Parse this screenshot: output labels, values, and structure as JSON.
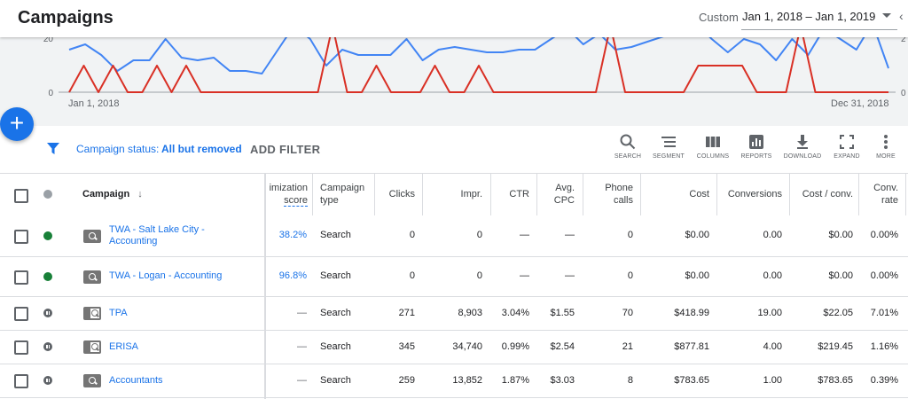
{
  "header": {
    "title": "Campaigns",
    "range_label": "Custom",
    "range_value": "Jan 1, 2018 – Jan 1, 2019"
  },
  "colors": {
    "accent": "#1a73e8",
    "blue_series": "#4285f4",
    "red_series": "#d93025",
    "active": "#188038"
  },
  "chart_data": {
    "type": "line",
    "x_start_label": "Jan 1, 2018",
    "x_end_label": "Dec 31, 2018",
    "y_ticks_left": [
      "20",
      "0"
    ],
    "y_ticks_right": [
      "2",
      "0"
    ],
    "series": [
      {
        "color": "#4285f4",
        "values": [
          16,
          18,
          14,
          8,
          12,
          12,
          20,
          13,
          12,
          13,
          8,
          8,
          7,
          16,
          25,
          20,
          10,
          16,
          14,
          14,
          14,
          20,
          12,
          16,
          17,
          16,
          15,
          15,
          16,
          16,
          20,
          24,
          18,
          22,
          16,
          17,
          19,
          21,
          22,
          26,
          20,
          15,
          20,
          18,
          12,
          20,
          14,
          24,
          20,
          16,
          26,
          9
        ]
      },
      {
        "color": "#d93025",
        "values": [
          0,
          10,
          0,
          10,
          0,
          0,
          10,
          0,
          10,
          0,
          0,
          0,
          0,
          0,
          0,
          0,
          0,
          0,
          25,
          0,
          0,
          10,
          0,
          0,
          0,
          10,
          0,
          0,
          10,
          0,
          0,
          0,
          0,
          0,
          0,
          0,
          0,
          25,
          0,
          0,
          0,
          0,
          0,
          10,
          10,
          10,
          10,
          0,
          0,
          0,
          25,
          0,
          0,
          0,
          0,
          0,
          0
        ]
      }
    ]
  },
  "fab": {
    "symbol": "+"
  },
  "filter": {
    "key": "Campaign status:",
    "value": "All but removed",
    "add_label": "ADD FILTER"
  },
  "toolbar": {
    "search": "SEARCH",
    "segment": "SEGMENT",
    "columns": "COLUMNS",
    "reports": "REPORTS",
    "download": "DOWNLOAD",
    "expand": "EXPAND",
    "more": "MORE"
  },
  "table": {
    "headers": {
      "campaign": "Campaign",
      "sort_arrow": "↓",
      "opt_score_1": "imization",
      "opt_score_2": "score",
      "type_1": "Campaign",
      "type_2": "type",
      "clicks": "Clicks",
      "impr": "Impr.",
      "ctr": "CTR",
      "cpc_1": "Avg.",
      "cpc_2": "CPC",
      "calls_1": "Phone",
      "calls_2": "calls",
      "cost": "Cost",
      "conversions": "Conversions",
      "cost_conv": "Cost / conv.",
      "conv_rate_1": "Conv.",
      "conv_rate_2": "rate"
    },
    "rows": [
      {
        "name_1": "TWA - Salt Lake City -",
        "name_2": "Accounting",
        "opt": "38.2%",
        "type": "Search",
        "clicks": "0",
        "impr": "0",
        "ctr": "—",
        "cpc": "—",
        "calls": "0",
        "cost": "$0.00",
        "conv": "0.00",
        "cost_conv": "$0.00",
        "rate": "0.00%"
      },
      {
        "name_1": "TWA - Logan - Accounting",
        "name_2": "",
        "opt": "96.8%",
        "type": "Search",
        "clicks": "0",
        "impr": "0",
        "ctr": "—",
        "cpc": "—",
        "calls": "0",
        "cost": "$0.00",
        "conv": "0.00",
        "cost_conv": "$0.00",
        "rate": "0.00%"
      },
      {
        "name_1": "TPA",
        "name_2": "",
        "opt": "—",
        "type": "Search",
        "clicks": "271",
        "impr": "8,903",
        "ctr": "3.04%",
        "cpc": "$1.55",
        "calls": "70",
        "cost": "$418.99",
        "conv": "19.00",
        "cost_conv": "$22.05",
        "rate": "7.01%"
      },
      {
        "name_1": "ERISA",
        "name_2": "",
        "opt": "—",
        "type": "Search",
        "clicks": "345",
        "impr": "34,740",
        "ctr": "0.99%",
        "cpc": "$2.54",
        "calls": "21",
        "cost": "$877.81",
        "conv": "4.00",
        "cost_conv": "$219.45",
        "rate": "1.16%"
      },
      {
        "name_1": "Accountants",
        "name_2": "",
        "opt": "—",
        "type": "Search",
        "clicks": "259",
        "impr": "13,852",
        "ctr": "1.87%",
        "cpc": "$3.03",
        "calls": "8",
        "cost": "$783.65",
        "conv": "1.00",
        "cost_conv": "$783.65",
        "rate": "0.39%"
      }
    ]
  }
}
